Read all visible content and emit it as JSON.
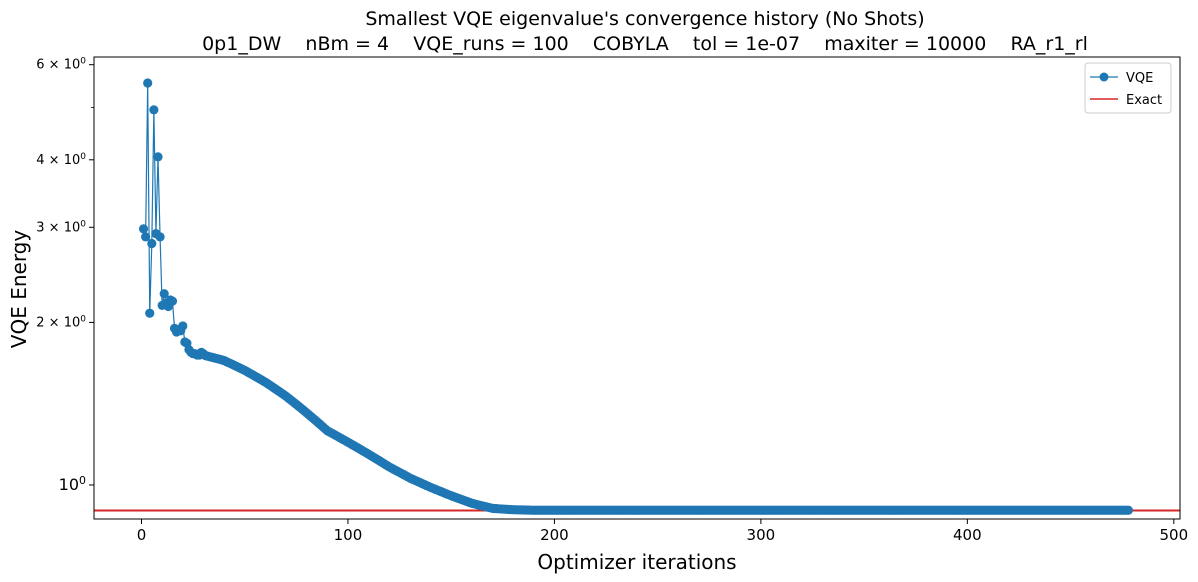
{
  "chart_data": {
    "type": "line",
    "title": "Smallest VQE eigenvalue's convergence history (No Shots)",
    "subtitle": "0p1_DW    nBm = 4    VQE_runs = 100    COBYLA    tol = 1e-07    maxiter = 10000    RA_r1_rl",
    "xlabel": "Optimizer iterations",
    "ylabel": "VQE Energy",
    "xlim": [
      -23,
      503
    ],
    "ylim": [
      0.865,
      6.2
    ],
    "yscale": "log",
    "grid": false,
    "legend_position": "top-right",
    "x_ticks": [
      0,
      100,
      200,
      300,
      400,
      500
    ],
    "x_tick_labels": [
      "0",
      "100",
      "200",
      "300",
      "400",
      "500"
    ],
    "y_major_ticks": [
      1,
      2,
      3,
      4,
      6
    ],
    "y_major_tick_labels": [
      {
        "base": "10",
        "exp": "0",
        "prefix": ""
      },
      {
        "base": "10",
        "exp": "0",
        "prefix": "2 × "
      },
      {
        "base": "10",
        "exp": "0",
        "prefix": "3 × "
      },
      {
        "base": "10",
        "exp": "0",
        "prefix": "4 × "
      },
      {
        "base": "10",
        "exp": "0",
        "prefix": "6 × "
      }
    ],
    "y_minor_ticks": [
      5
    ],
    "series": [
      {
        "name": "VQE",
        "kind": "line-marker",
        "color": "#1f77b4",
        "x": [
          1,
          2,
          3,
          4,
          5,
          6,
          7,
          8,
          9,
          10,
          11,
          12,
          13,
          14,
          15,
          16,
          17,
          18,
          19,
          20,
          21,
          22,
          23,
          24,
          25,
          26,
          27,
          28,
          29,
          30
        ],
        "y": [
          2.98,
          2.88,
          5.55,
          2.08,
          2.8,
          4.95,
          2.92,
          4.05,
          2.88,
          2.15,
          2.26,
          2.17,
          2.14,
          2.2,
          2.19,
          1.95,
          1.92,
          1.94,
          1.93,
          1.97,
          1.84,
          1.83,
          1.78,
          1.76,
          1.75,
          1.75,
          1.74,
          1.74,
          1.76,
          1.75
        ],
        "trend": {
          "x": [
            30,
            40,
            50,
            60,
            70,
            80,
            90,
            100,
            110,
            120,
            130,
            140,
            150,
            160,
            170,
            180,
            190,
            478
          ],
          "y": [
            1.74,
            1.7,
            1.63,
            1.55,
            1.46,
            1.36,
            1.26,
            1.2,
            1.14,
            1.08,
            1.03,
            0.99,
            0.955,
            0.925,
            0.905,
            0.9,
            0.898,
            0.898
          ]
        }
      },
      {
        "name": "Exact",
        "kind": "hline",
        "color": "#d62728",
        "y": 0.897
      }
    ]
  }
}
